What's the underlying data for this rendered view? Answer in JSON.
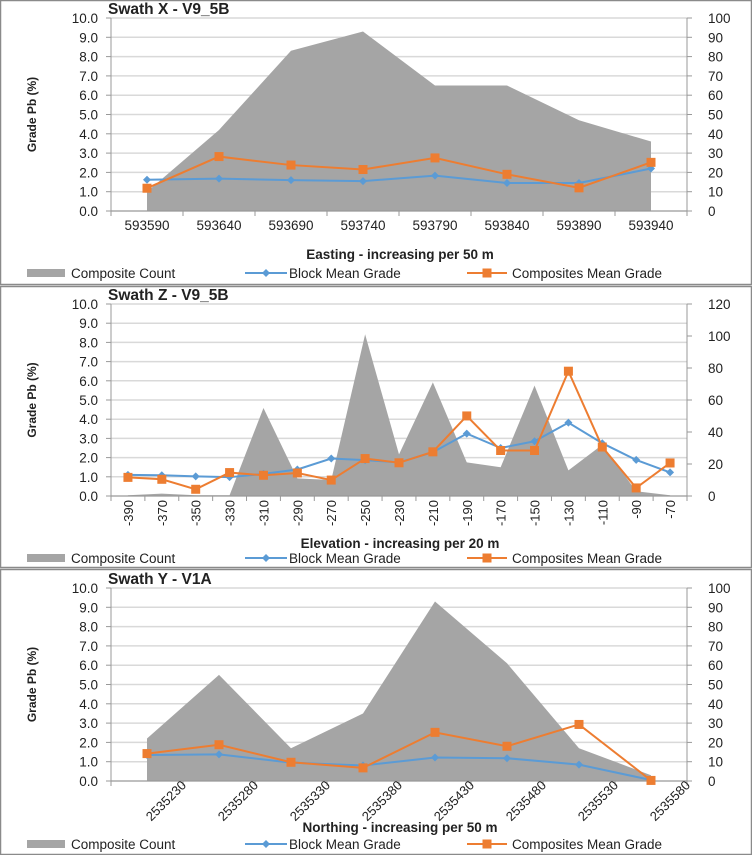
{
  "colors": {
    "area": "#a5a5a5",
    "block": "#5b9bd5",
    "composite": "#ed7d31",
    "grid": "#d9d9d9",
    "border": "#8a8a8a"
  },
  "legend": {
    "area": "Composite Count",
    "block": "Block Mean Grade",
    "composite": "Composites Mean Grade"
  },
  "chart_data": [
    {
      "type": "line",
      "title": "Swath X - V9_5B",
      "xlabel": "Easting  - increasing per 50 m",
      "ylabel": "Grade Pb (%)",
      "ylim": [
        0,
        10
      ],
      "y2lim": [
        0,
        100
      ],
      "yticks": [
        "0.0",
        "1.0",
        "2.0",
        "3.0",
        "4.0",
        "5.0",
        "6.0",
        "7.0",
        "8.0",
        "9.0",
        "10.0"
      ],
      "y2ticks": [
        "0",
        "10",
        "20",
        "30",
        "40",
        "50",
        "60",
        "70",
        "80",
        "90",
        "100"
      ],
      "label_rotation": 0,
      "categories": [
        "593590",
        "593640",
        "593690",
        "593740",
        "593790",
        "593840",
        "593890",
        "593940"
      ],
      "series": [
        {
          "name": "Composite Count",
          "type": "area",
          "axis": "right",
          "values": [
            10,
            42,
            83,
            93,
            65,
            65,
            47,
            36
          ]
        },
        {
          "name": "Block Mean Grade",
          "type": "line",
          "axis": "left",
          "values": [
            1.62,
            1.68,
            1.6,
            1.55,
            1.83,
            1.45,
            1.45,
            2.2
          ]
        },
        {
          "name": "Composites Mean Grade",
          "type": "line",
          "axis": "left",
          "values": [
            1.18,
            2.82,
            2.38,
            2.15,
            2.75,
            1.9,
            1.2,
            2.52
          ]
        }
      ],
      "grid": true,
      "legend": "bottom"
    },
    {
      "type": "line",
      "title": "Swath Z - V9_5B",
      "xlabel": "Elevation - increasing per 20 m",
      "ylabel": "Grade Pb (%)",
      "ylim": [
        0,
        10
      ],
      "y2lim": [
        0,
        120
      ],
      "yticks": [
        "0.0",
        "1.0",
        "2.0",
        "3.0",
        "4.0",
        "5.0",
        "6.0",
        "7.0",
        "8.0",
        "9.0",
        "10.0"
      ],
      "y2ticks": [
        "0",
        "20",
        "40",
        "60",
        "80",
        "100",
        "120"
      ],
      "label_rotation": -90,
      "categories": [
        "-390",
        "-370",
        "-350",
        "-330",
        "-310",
        "-290",
        "-270",
        "-250",
        "-230",
        "-210",
        "-190",
        "-170",
        "-150",
        "-130",
        "-110",
        "-90",
        "-70"
      ],
      "series": [
        {
          "name": "Composite Count",
          "type": "area",
          "axis": "right",
          "values": [
            0.5,
            1.5,
            0.5,
            0.5,
            55,
            11,
            10,
            101,
            26,
            71,
            21,
            18,
            69,
            16,
            32,
            3,
            0.5
          ]
        },
        {
          "name": "Block Mean Grade",
          "type": "line",
          "axis": "left",
          "values": [
            1.1,
            1.08,
            1.02,
            0.98,
            1.15,
            1.38,
            1.95,
            1.87,
            1.75,
            2.28,
            3.25,
            2.5,
            2.85,
            3.82,
            2.75,
            1.88,
            1.23
          ]
        },
        {
          "name": "Composites Mean Grade",
          "type": "line",
          "axis": "left",
          "values": [
            0.97,
            0.87,
            0.35,
            1.22,
            1.08,
            1.2,
            0.83,
            1.95,
            1.73,
            2.3,
            4.17,
            2.37,
            2.37,
            6.5,
            2.55,
            0.42,
            1.72
          ]
        }
      ],
      "grid": true,
      "legend": "bottom"
    },
    {
      "type": "line",
      "title": "Swath Y - V1A",
      "xlabel": "Northing - increasing per 50 m",
      "ylabel": "Grade Pb (%)",
      "ylim": [
        0,
        10
      ],
      "y2lim": [
        0,
        100
      ],
      "yticks": [
        "0.0",
        "1.0",
        "2.0",
        "3.0",
        "4.0",
        "5.0",
        "6.0",
        "7.0",
        "8.0",
        "9.0",
        "10.0"
      ],
      "y2ticks": [
        "0",
        "10",
        "20",
        "30",
        "40",
        "50",
        "60",
        "70",
        "80",
        "90",
        "100"
      ],
      "label_rotation": -45,
      "categories": [
        "2535230",
        "2535280",
        "2535330",
        "2535380",
        "2535430",
        "2535480",
        "2535530",
        "2535580"
      ],
      "series": [
        {
          "name": "Composite Count",
          "type": "area",
          "axis": "right",
          "values": [
            22,
            55,
            17,
            35,
            93,
            61,
            17,
            3
          ]
        },
        {
          "name": "Block Mean Grade",
          "type": "line",
          "axis": "left",
          "values": [
            1.35,
            1.38,
            0.95,
            0.8,
            1.22,
            1.18,
            0.85,
            0.05
          ]
        },
        {
          "name": "Composites Mean Grade",
          "type": "line",
          "axis": "left",
          "values": [
            1.42,
            1.88,
            0.97,
            0.68,
            2.52,
            1.8,
            2.93,
            0.03
          ]
        }
      ],
      "grid": true,
      "legend": "bottom"
    }
  ]
}
